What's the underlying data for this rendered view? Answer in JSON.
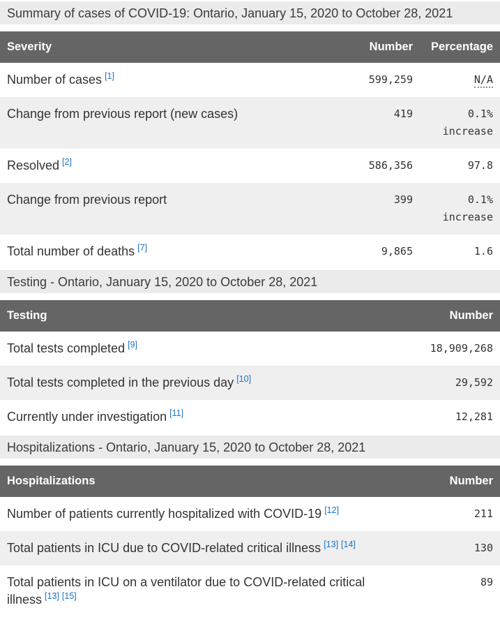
{
  "colors": {
    "header_bg": "#656565",
    "header_text": "#ffffff",
    "caption_bg": "#ebebeb",
    "stripe_bg": "#efefef",
    "body_text": "#333333",
    "footnote_link": "#1a73c8"
  },
  "sections": [
    {
      "caption": "Summary of cases of COVID-19: Ontario, January 15, 2020 to October 28, 2021",
      "columns": [
        "Severity",
        "Number",
        "Percentage"
      ],
      "rows": [
        {
          "label": "Number of cases",
          "refs": [
            "[1]"
          ],
          "number": "599,259",
          "percentage": "N/A"
        },
        {
          "label": "Change from previous report (new cases)",
          "refs": [],
          "number": "419",
          "percentage": "0.1% increase"
        },
        {
          "label": "Resolved",
          "refs": [
            "[2]"
          ],
          "number": "586,356",
          "percentage": "97.8"
        },
        {
          "label": "Change from previous report",
          "refs": [],
          "number": "399",
          "percentage": "0.1% increase"
        },
        {
          "label": "Total number of deaths",
          "refs": [
            "[7]"
          ],
          "number": "9,865",
          "percentage": "1.6"
        }
      ]
    },
    {
      "caption": "Testing - Ontario, January 15, 2020 to October 28, 2021",
      "columns": [
        "Testing",
        "Number"
      ],
      "rows": [
        {
          "label": "Total tests completed",
          "refs": [
            "[9]"
          ],
          "number": "18,909,268"
        },
        {
          "label": "Total tests completed in the previous day",
          "refs": [
            "[10]"
          ],
          "number": "29,592"
        },
        {
          "label": "Currently under investigation",
          "refs": [
            "[11]"
          ],
          "number": "12,281"
        }
      ]
    },
    {
      "caption": "Hospitalizations - Ontario, January 15, 2020 to October 28, 2021",
      "columns": [
        "Hospitalizations",
        "Number"
      ],
      "rows": [
        {
          "label": "Number of patients currently hospitalized with COVID-19",
          "refs": [
            "[12]"
          ],
          "number": "211"
        },
        {
          "label": "Total patients in ICU due to COVID-related critical illness",
          "refs": [
            "[13]",
            "[14]"
          ],
          "number": "130"
        },
        {
          "label": "Total patients in ICU on a ventilator due to COVID-related critical illness",
          "refs": [
            "[13]",
            "[15]"
          ],
          "number": "89"
        }
      ]
    }
  ]
}
